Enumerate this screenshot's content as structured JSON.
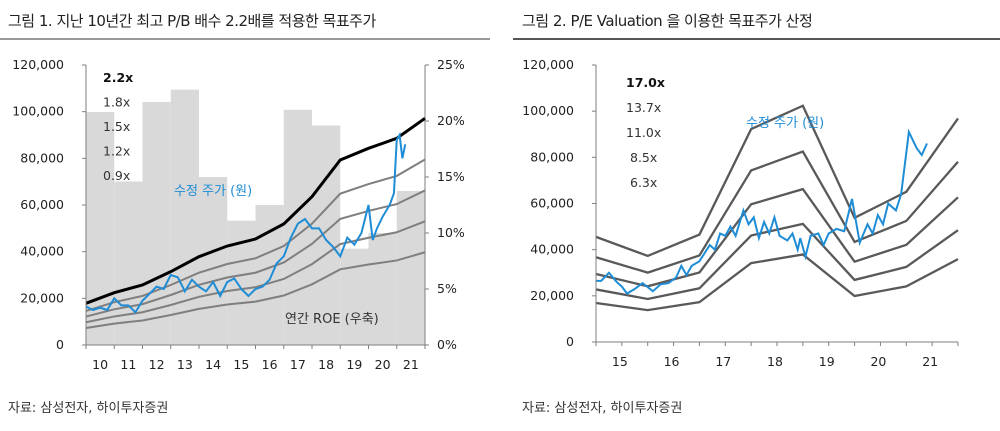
{
  "colors": {
    "roe_bar": "#d9d9d9",
    "band_top": "#000000",
    "band": "#7f7f7f",
    "band_pe": "#595959",
    "price": "#1f8dd6",
    "axis": "#7f7f7f"
  },
  "chart_data": [
    {
      "type": "line",
      "title": "그림 1. 지난 10년간 최고 P/B 배수 2.2배를 적용한 목표주가",
      "source": "자료: 삼성전자, 하이투자증권",
      "xlim": [
        2010,
        2022
      ],
      "ylim": [
        0,
        120000
      ],
      "y2lim": [
        0,
        25
      ],
      "yticks": [
        "0",
        "20,000",
        "40,000",
        "60,000",
        "80,000",
        "100,000",
        "120,000"
      ],
      "y2ticks": [
        "0%",
        "5%",
        "10%",
        "15%",
        "20%",
        "25%"
      ],
      "xticks": [
        {
          "x": 2010.5,
          "label": "10"
        },
        {
          "x": 2011.5,
          "label": "11"
        },
        {
          "x": 2012.5,
          "label": "12"
        },
        {
          "x": 2013.5,
          "label": "13"
        },
        {
          "x": 2014.5,
          "label": "14"
        },
        {
          "x": 2015.5,
          "label": "15"
        },
        {
          "x": 2016.5,
          "label": "16"
        },
        {
          "x": 2017.5,
          "label": "17"
        },
        {
          "x": 2018.5,
          "label": "18"
        },
        {
          "x": 2019.5,
          "label": "19"
        },
        {
          "x": 2020.5,
          "label": "20"
        },
        {
          "x": 2021.5,
          "label": "21"
        }
      ],
      "roe_bars": {
        "name": "연간 ROE (우축)",
        "years": [
          2010,
          2011,
          2012,
          2013,
          2014,
          2015,
          2016,
          2017,
          2018,
          2019,
          2020,
          2021
        ],
        "values": [
          20.8,
          14.6,
          21.7,
          22.8,
          15.0,
          11.1,
          12.5,
          21.0,
          19.6,
          8.6,
          10.0,
          13.75
        ]
      },
      "bands": {
        "x": [
          2010,
          2011,
          2012,
          2013,
          2014,
          2015,
          2016,
          2017,
          2018,
          2019,
          2020,
          2021,
          2022
        ],
        "bps": [
          8117,
          10195,
          11688,
          14286,
          17208,
          19286,
          20649,
          23571,
          28896,
          36039,
          38312,
          40260,
          44156
        ],
        "multiples": [
          {
            "label": "2.2x",
            "value": 2.2,
            "top": true
          },
          {
            "label": "1.8x",
            "value": 1.8
          },
          {
            "label": "1.5x",
            "value": 1.5
          },
          {
            "label": "1.2x",
            "value": 1.2
          },
          {
            "label": "0.9x",
            "value": 0.9
          }
        ]
      },
      "price": {
        "name": "수정 주가 (원)",
        "x": [
          2010.0,
          2010.25,
          2010.5,
          2010.75,
          2011.0,
          2011.25,
          2011.5,
          2011.75,
          2012.0,
          2012.25,
          2012.5,
          2012.75,
          2013.0,
          2013.25,
          2013.5,
          2013.75,
          2014.0,
          2014.25,
          2014.5,
          2014.75,
          2015.0,
          2015.25,
          2015.5,
          2015.75,
          2016.0,
          2016.25,
          2016.5,
          2016.75,
          2017.0,
          2017.25,
          2017.5,
          2017.75,
          2018.0,
          2018.25,
          2018.5,
          2018.75,
          2019.0,
          2019.25,
          2019.5,
          2019.75,
          2020.0,
          2020.15,
          2020.3,
          2020.5,
          2020.75,
          2020.9,
          2021.0,
          2021.1,
          2021.2,
          2021.3
        ],
        "y": [
          16500,
          15000,
          16000,
          15000,
          20000,
          17000,
          17000,
          14000,
          19000,
          22000,
          25000,
          24000,
          30000,
          29000,
          23000,
          28000,
          25000,
          23000,
          27000,
          21000,
          27000,
          28500,
          24000,
          21000,
          24000,
          25000,
          28000,
          35000,
          38000,
          46000,
          52000,
          54000,
          50000,
          50000,
          45000,
          42000,
          38000,
          46000,
          43000,
          48000,
          60000,
          45000,
          50000,
          55000,
          60000,
          65000,
          88000,
          90000,
          80000,
          86000
        ]
      }
    },
    {
      "type": "line",
      "title": "그림 2. P/E Valuation 을 이용한 목표주가 산정",
      "source": "자료: 삼성전자, 하이투자증권",
      "xlim": [
        2015,
        2022
      ],
      "ylim": [
        0,
        120000
      ],
      "yticks": [
        "0",
        "20,000",
        "40,000",
        "60,000",
        "80,000",
        "100,000",
        "120,000"
      ],
      "xticks": [
        {
          "x": 2015.5,
          "label": "15"
        },
        {
          "x": 2016.5,
          "label": "16"
        },
        {
          "x": 2017.5,
          "label": "17"
        },
        {
          "x": 2018.5,
          "label": "18"
        },
        {
          "x": 2019.5,
          "label": "19"
        },
        {
          "x": 2020.5,
          "label": "20"
        },
        {
          "x": 2021.5,
          "label": "21"
        }
      ],
      "bands": {
        "x": [
          2015,
          2016,
          2017,
          2018,
          2019,
          2020,
          2021,
          2022
        ],
        "eps": [
          2679,
          2194,
          2738,
          5426,
          6021,
          3164,
          3827,
          5698
        ],
        "multiples": [
          {
            "label": "17.0x",
            "value": 17.0,
            "top": true
          },
          {
            "label": "13.7x",
            "value": 13.7
          },
          {
            "label": "11.0x",
            "value": 11.0
          },
          {
            "label": "8.5x",
            "value": 8.5
          },
          {
            "label": "6.3x",
            "value": 6.3
          }
        ]
      },
      "price": {
        "name": "수정 주가 (원)",
        "x": [
          2015.0,
          2015.1,
          2015.25,
          2015.4,
          2015.5,
          2015.6,
          2015.75,
          2015.9,
          2016.1,
          2016.25,
          2016.4,
          2016.55,
          2016.65,
          2016.75,
          2016.85,
          2017.0,
          2017.2,
          2017.3,
          2017.4,
          2017.5,
          2017.6,
          2017.7,
          2017.85,
          2017.95,
          2018.05,
          2018.15,
          2018.25,
          2018.35,
          2018.45,
          2018.55,
          2018.7,
          2018.8,
          2018.9,
          2018.95,
          2019.05,
          2019.15,
          2019.3,
          2019.4,
          2019.5,
          2019.65,
          2019.8,
          2019.95,
          2020.1,
          2020.25,
          2020.35,
          2020.45,
          2020.55,
          2020.65,
          2020.8,
          2020.9,
          2021.05,
          2021.2,
          2021.3,
          2021.4
        ],
        "y": [
          26500,
          26500,
          30000,
          26000,
          24000,
          21000,
          23000,
          25500,
          22000,
          25000,
          25500,
          28000,
          33000,
          29000,
          33000,
          35000,
          42000,
          40000,
          47000,
          46000,
          50000,
          46000,
          57000,
          51000,
          54000,
          45000,
          52000,
          47000,
          54000,
          46000,
          44000,
          47000,
          40000,
          45000,
          37000,
          46000,
          47000,
          42000,
          47000,
          49000,
          48000,
          62000,
          43000,
          51000,
          47000,
          55000,
          51000,
          60000,
          57000,
          64000,
          91000,
          84000,
          81000,
          86000
        ]
      }
    }
  ]
}
